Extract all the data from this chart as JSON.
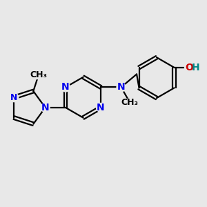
{
  "bg_color": "#e8e8e8",
  "bond_color": "#000000",
  "n_color": "#0000ee",
  "o_color": "#cc0000",
  "h_color": "#008888",
  "font_size": 10,
  "lw": 1.6,
  "figsize": [
    3.0,
    3.0
  ],
  "dpi": 100,
  "xlim": [
    -2.5,
    7.5
  ],
  "ylim": [
    -3.5,
    3.5
  ]
}
